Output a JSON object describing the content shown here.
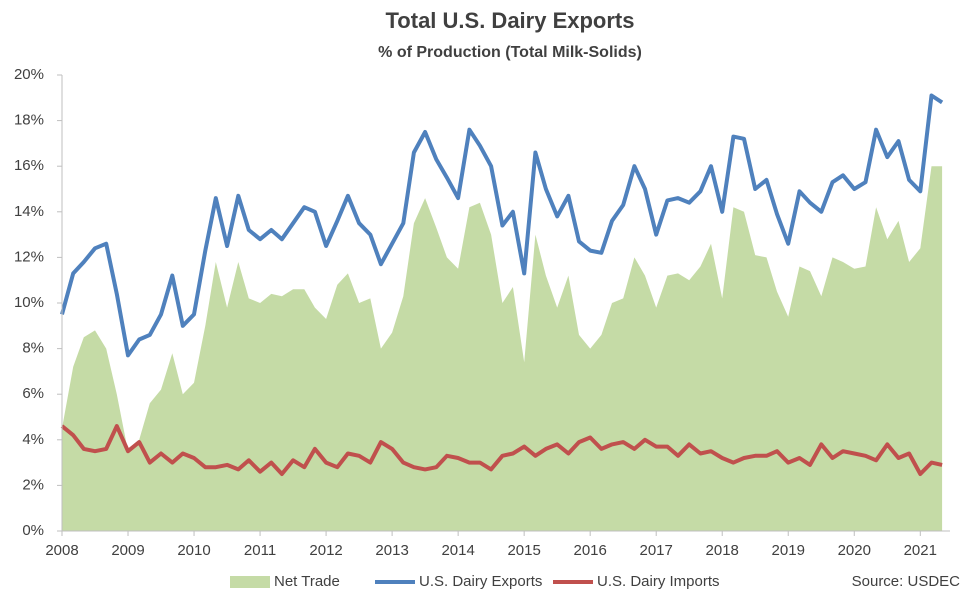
{
  "chart_data": {
    "type": "line",
    "title": "Total U.S. Dairy Exports",
    "subtitle": "% of Production  (Total Milk-Solids)",
    "source": "Source: USDEC",
    "x": [
      2008,
      2008.17,
      2008.33,
      2008.5,
      2008.67,
      2008.83,
      2009,
      2009.17,
      2009.33,
      2009.5,
      2009.67,
      2009.83,
      2010,
      2010.17,
      2010.33,
      2010.5,
      2010.67,
      2010.83,
      2011,
      2011.17,
      2011.33,
      2011.5,
      2011.67,
      2011.83,
      2012,
      2012.17,
      2012.33,
      2012.5,
      2012.67,
      2012.83,
      2013,
      2013.17,
      2013.33,
      2013.5,
      2013.67,
      2013.83,
      2014,
      2014.17,
      2014.33,
      2014.5,
      2014.67,
      2014.83,
      2015,
      2015.17,
      2015.33,
      2015.5,
      2015.67,
      2015.83,
      2016,
      2016.17,
      2016.33,
      2016.5,
      2016.67,
      2016.83,
      2017,
      2017.17,
      2017.33,
      2017.5,
      2017.67,
      2017.83,
      2018,
      2018.17,
      2018.33,
      2018.5,
      2018.67,
      2018.83,
      2019,
      2019.17,
      2019.33,
      2019.5,
      2019.67,
      2019.83,
      2020,
      2020.17,
      2020.33,
      2020.5,
      2020.67,
      2020.83,
      2021,
      2021.17,
      2021.33
    ],
    "series": [
      {
        "name": "Net Trade",
        "kind": "area",
        "color": "#c5dba6",
        "values": [
          4.5,
          7.2,
          8.5,
          8.8,
          8.0,
          6.0,
          3.5,
          4.0,
          5.6,
          6.2,
          7.8,
          6.0,
          6.5,
          9.0,
          11.8,
          9.8,
          11.8,
          10.2,
          10.0,
          10.4,
          10.3,
          10.6,
          10.6,
          9.8,
          9.3,
          10.8,
          11.3,
          10.0,
          10.2,
          8.0,
          8.7,
          10.3,
          13.5,
          14.6,
          13.3,
          12.0,
          11.5,
          14.2,
          14.4,
          13.0,
          10.0,
          10.7,
          7.4,
          13.0,
          11.2,
          9.8,
          11.2,
          8.6,
          8.0,
          8.6,
          10.0,
          10.2,
          12.0,
          11.2,
          9.8,
          11.2,
          11.3,
          11.0,
          11.6,
          12.6,
          10.2,
          14.2,
          14.0,
          12.1,
          12.0,
          10.5,
          9.4,
          11.6,
          11.4,
          10.3,
          12.0,
          11.8,
          11.5,
          11.6,
          14.2,
          12.8,
          13.6,
          11.8,
          12.4,
          16.0,
          16.0
        ]
      },
      {
        "name": "U.S. Dairy Exports",
        "kind": "line",
        "color": "#4f81bd",
        "values": [
          9.5,
          11.3,
          11.8,
          12.4,
          12.6,
          10.4,
          7.7,
          8.4,
          8.6,
          9.5,
          11.2,
          9.0,
          9.5,
          12.3,
          14.6,
          12.5,
          14.7,
          13.2,
          12.8,
          13.2,
          12.8,
          13.5,
          14.2,
          14.0,
          12.5,
          13.6,
          14.7,
          13.5,
          13.0,
          11.7,
          12.6,
          13.5,
          16.6,
          17.5,
          16.3,
          15.5,
          14.6,
          17.6,
          16.9,
          16.0,
          13.4,
          14.0,
          11.3,
          16.6,
          15.0,
          13.8,
          14.7,
          12.7,
          12.3,
          12.2,
          13.6,
          14.3,
          16.0,
          15.0,
          13.0,
          14.5,
          14.6,
          14.4,
          14.9,
          16.0,
          14.0,
          17.3,
          17.2,
          15.0,
          15.4,
          13.9,
          12.6,
          14.9,
          14.4,
          14.0,
          15.3,
          15.6,
          15.0,
          15.3,
          17.6,
          16.4,
          17.1,
          15.4,
          14.9,
          19.1,
          18.8
        ]
      },
      {
        "name": "U.S. Dairy Imports",
        "kind": "line",
        "color": "#c0504d",
        "values": [
          4.6,
          4.2,
          3.6,
          3.5,
          3.6,
          4.6,
          3.5,
          3.9,
          3.0,
          3.4,
          3.0,
          3.4,
          3.2,
          2.8,
          2.8,
          2.9,
          2.7,
          3.1,
          2.6,
          3.0,
          2.5,
          3.1,
          2.8,
          3.6,
          3.0,
          2.8,
          3.4,
          3.3,
          3.0,
          3.9,
          3.6,
          3.0,
          2.8,
          2.7,
          2.8,
          3.3,
          3.2,
          3.0,
          3.0,
          2.7,
          3.3,
          3.4,
          3.7,
          3.3,
          3.6,
          3.8,
          3.4,
          3.9,
          4.1,
          3.6,
          3.8,
          3.9,
          3.6,
          4.0,
          3.7,
          3.7,
          3.3,
          3.8,
          3.4,
          3.5,
          3.2,
          3.0,
          3.2,
          3.3,
          3.3,
          3.5,
          3.0,
          3.2,
          2.9,
          3.8,
          3.2,
          3.5,
          3.4,
          3.3,
          3.1,
          3.8,
          3.2,
          3.4,
          2.5,
          3.0,
          2.9
        ]
      }
    ],
    "xlim": [
      2008,
      2021.45
    ],
    "xticks": [
      2008,
      2009,
      2010,
      2011,
      2012,
      2013,
      2014,
      2015,
      2016,
      2017,
      2018,
      2019,
      2020,
      2021
    ],
    "ylim": [
      0,
      20
    ],
    "yticks": [
      {
        "value": 0,
        "label": "0%"
      },
      {
        "value": 2,
        "label": "2%"
      },
      {
        "value": 4,
        "label": "4%"
      },
      {
        "value": 6,
        "label": "6%"
      },
      {
        "value": 8,
        "label": "8%"
      },
      {
        "value": 10,
        "label": "10%"
      },
      {
        "value": 12,
        "label": "12%"
      },
      {
        "value": 14,
        "label": "14%"
      },
      {
        "value": 16,
        "label": "16%"
      },
      {
        "value": 18,
        "label": "18%"
      },
      {
        "value": 20,
        "label": "20%"
      }
    ],
    "grid": false,
    "legend": "bottom"
  }
}
